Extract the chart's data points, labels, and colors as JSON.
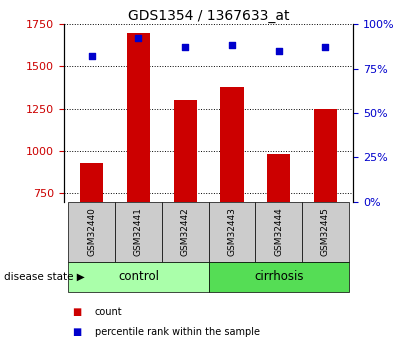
{
  "title": "GDS1354 / 1367633_at",
  "samples": [
    "GSM32440",
    "GSM32441",
    "GSM32442",
    "GSM32443",
    "GSM32444",
    "GSM32445"
  ],
  "counts": [
    930,
    1700,
    1300,
    1380,
    980,
    1250
  ],
  "percentiles": [
    82,
    92,
    87,
    88,
    85,
    87
  ],
  "ylim_left": [
    700,
    1750
  ],
  "ylim_right": [
    0,
    100
  ],
  "yticks_left": [
    750,
    1000,
    1250,
    1500,
    1750
  ],
  "yticks_right": [
    0,
    25,
    50,
    75,
    100
  ],
  "bar_color": "#cc0000",
  "dot_color": "#0000cc",
  "groups": [
    {
      "label": "control",
      "indices": [
        0,
        1,
        2
      ],
      "color": "#aaffaa"
    },
    {
      "label": "cirrhosis",
      "indices": [
        3,
        4,
        5
      ],
      "color": "#55dd55"
    }
  ],
  "sample_box_color": "#cccccc",
  "left_axis_color": "#cc0000",
  "right_axis_color": "#0000cc",
  "legend_count_label": "count",
  "legend_pct_label": "percentile rank within the sample",
  "disease_state_label": "disease state",
  "bar_bottom": 700,
  "bar_width": 0.5
}
